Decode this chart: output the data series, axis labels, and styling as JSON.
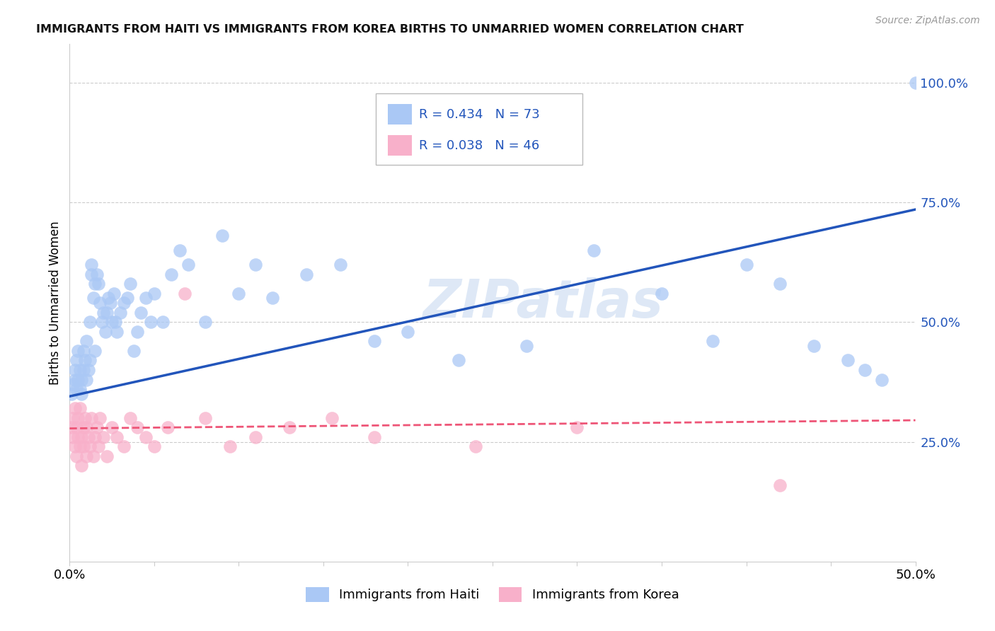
{
  "title": "IMMIGRANTS FROM HAITI VS IMMIGRANTS FROM KOREA BIRTHS TO UNMARRIED WOMEN CORRELATION CHART",
  "source": "Source: ZipAtlas.com",
  "ylabel": "Births to Unmarried Women",
  "xlim": [
    0.0,
    0.5
  ],
  "ylim": [
    0.0,
    1.08
  ],
  "yticks_right": [
    0.25,
    0.5,
    0.75,
    1.0
  ],
  "ytick_labels_right": [
    "25.0%",
    "50.0%",
    "75.0%",
    "100.0%"
  ],
  "haiti_color": "#aac8f5",
  "korea_color": "#f8b0ca",
  "haiti_line_color": "#2255bb",
  "korea_line_color": "#ee5577",
  "haiti_R": 0.434,
  "haiti_N": 73,
  "korea_R": 0.038,
  "korea_N": 46,
  "legend_label_haiti": "Immigrants from Haiti",
  "legend_label_korea": "Immigrants from Korea",
  "watermark": "ZIPatlas",
  "background_color": "#ffffff",
  "grid_color": "#cccccc",
  "title_color": "#111111",
  "tick_label_color": "#2255bb",
  "haiti_line_y0": 0.345,
  "haiti_line_y1": 0.735,
  "korea_line_y0": 0.278,
  "korea_line_y1": 0.295,
  "haiti_scatter_x": [
    0.001,
    0.002,
    0.003,
    0.003,
    0.004,
    0.004,
    0.005,
    0.005,
    0.006,
    0.006,
    0.007,
    0.007,
    0.008,
    0.008,
    0.009,
    0.01,
    0.01,
    0.011,
    0.012,
    0.012,
    0.013,
    0.013,
    0.014,
    0.015,
    0.015,
    0.016,
    0.017,
    0.018,
    0.019,
    0.02,
    0.021,
    0.022,
    0.023,
    0.024,
    0.025,
    0.026,
    0.027,
    0.028,
    0.03,
    0.032,
    0.034,
    0.036,
    0.038,
    0.04,
    0.042,
    0.045,
    0.048,
    0.05,
    0.055,
    0.06,
    0.065,
    0.07,
    0.08,
    0.09,
    0.1,
    0.11,
    0.12,
    0.14,
    0.16,
    0.18,
    0.2,
    0.23,
    0.27,
    0.31,
    0.35,
    0.38,
    0.4,
    0.42,
    0.44,
    0.46,
    0.47,
    0.48,
    0.5
  ],
  "haiti_scatter_y": [
    0.35,
    0.37,
    0.38,
    0.4,
    0.36,
    0.42,
    0.38,
    0.44,
    0.36,
    0.4,
    0.35,
    0.38,
    0.4,
    0.44,
    0.42,
    0.38,
    0.46,
    0.4,
    0.5,
    0.42,
    0.62,
    0.6,
    0.55,
    0.58,
    0.44,
    0.6,
    0.58,
    0.54,
    0.5,
    0.52,
    0.48,
    0.52,
    0.55,
    0.54,
    0.5,
    0.56,
    0.5,
    0.48,
    0.52,
    0.54,
    0.55,
    0.58,
    0.44,
    0.48,
    0.52,
    0.55,
    0.5,
    0.56,
    0.5,
    0.6,
    0.65,
    0.62,
    0.5,
    0.68,
    0.56,
    0.62,
    0.55,
    0.6,
    0.62,
    0.46,
    0.48,
    0.42,
    0.45,
    0.65,
    0.56,
    0.46,
    0.62,
    0.58,
    0.45,
    0.42,
    0.4,
    0.38,
    1.0
  ],
  "korea_scatter_x": [
    0.001,
    0.002,
    0.002,
    0.003,
    0.003,
    0.004,
    0.004,
    0.005,
    0.005,
    0.006,
    0.006,
    0.007,
    0.007,
    0.008,
    0.008,
    0.009,
    0.01,
    0.01,
    0.011,
    0.012,
    0.013,
    0.014,
    0.015,
    0.016,
    0.017,
    0.018,
    0.02,
    0.022,
    0.025,
    0.028,
    0.032,
    0.036,
    0.04,
    0.045,
    0.05,
    0.058,
    0.068,
    0.08,
    0.095,
    0.11,
    0.13,
    0.155,
    0.18,
    0.24,
    0.3,
    0.42
  ],
  "korea_scatter_y": [
    0.28,
    0.26,
    0.3,
    0.24,
    0.32,
    0.22,
    0.28,
    0.26,
    0.3,
    0.24,
    0.32,
    0.26,
    0.2,
    0.28,
    0.24,
    0.3,
    0.22,
    0.28,
    0.26,
    0.24,
    0.3,
    0.22,
    0.26,
    0.28,
    0.24,
    0.3,
    0.26,
    0.22,
    0.28,
    0.26,
    0.24,
    0.3,
    0.28,
    0.26,
    0.24,
    0.28,
    0.56,
    0.3,
    0.24,
    0.26,
    0.28,
    0.3,
    0.26,
    0.24,
    0.28,
    0.16
  ]
}
